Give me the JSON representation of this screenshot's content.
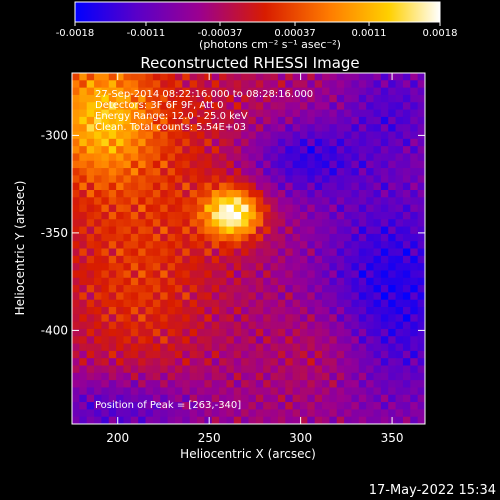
{
  "colorbar": {
    "ticks": [
      "-0.0018",
      "-0.0011",
      "-0.00037",
      "0.00037",
      "0.0011",
      "0.0018"
    ],
    "tick_values": [
      -0.0018,
      -0.0011,
      -0.00037,
      0.00037,
      0.0011,
      0.0018
    ],
    "range": [
      -0.0018,
      0.0018
    ],
    "units": "(photons cm⁻² s⁻¹ asec⁻²)",
    "colors": [
      "#0000ff",
      "#5a00c8",
      "#9b0090",
      "#d81c00",
      "#ff7d00",
      "#ffd000",
      "#ffffff"
    ]
  },
  "chart_data": {
    "type": "heatmap",
    "title": "Reconstructed RHESSI Image",
    "xlabel": "Heliocentric X (arcsec)",
    "ylabel": "Heliocentric Y (arcsec)",
    "xlim": [
      175,
      368
    ],
    "ylim": [
      -448,
      -268
    ],
    "x_ticks": [
      200,
      250,
      300,
      350
    ],
    "y_ticks": [
      -300,
      -350,
      -400
    ],
    "annotations": [
      "27-Sep-2014 08:22:16.000 to 08:28:16.000",
      "Detectors: 3F 6F 9F, Att 0",
      "Energy Range: 12.0 - 25.0 keV",
      "Clean.  Total counts: 5.54E+03"
    ],
    "peak_label": "Position of Peak = [263,-340]",
    "peak": [
      263,
      -340
    ]
  },
  "footer": {
    "timestamp": "17-May-2022 15:34"
  }
}
